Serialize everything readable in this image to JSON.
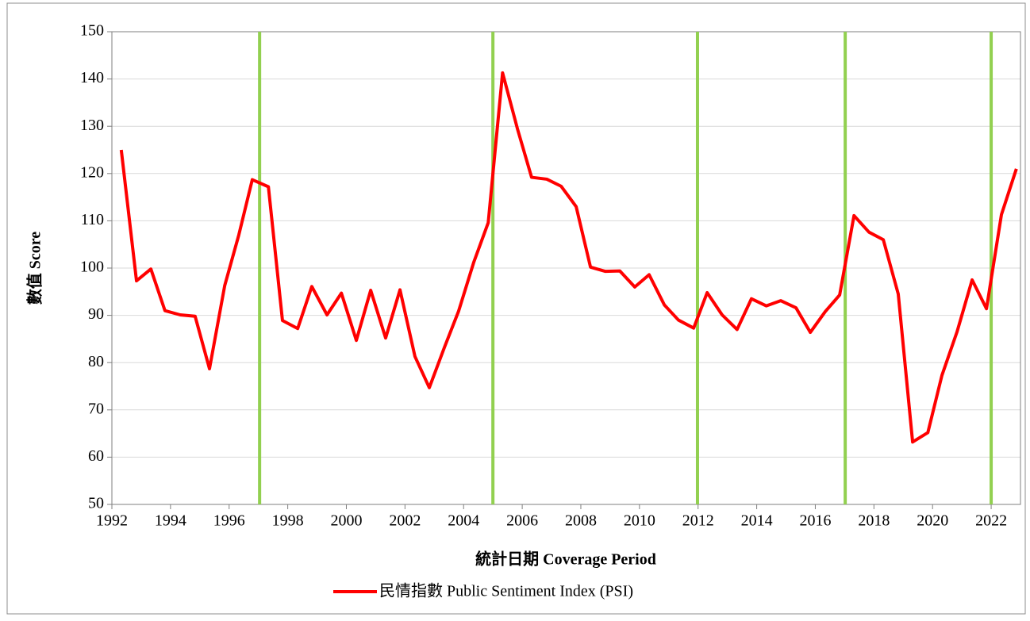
{
  "chart_data": {
    "type": "line",
    "xlabel": "統計日期 Coverage Period",
    "ylabel": "數值 Score",
    "x": [
      1992.32,
      1992.84,
      1993.33,
      1993.81,
      1994.33,
      1994.84,
      1995.33,
      1995.85,
      1996.33,
      1996.79,
      1997.34,
      1997.82,
      1998.34,
      1998.82,
      1999.34,
      1999.83,
      2000.34,
      2000.83,
      2001.34,
      2001.83,
      2002.34,
      2002.83,
      2003.35,
      2003.83,
      2004.35,
      2004.84,
      2005.33,
      2005.84,
      2006.32,
      2006.84,
      2007.33,
      2007.84,
      2008.33,
      2008.84,
      2009.33,
      2009.84,
      2010.33,
      2010.85,
      2011.33,
      2011.85,
      2012.31,
      2012.82,
      2013.33,
      2013.82,
      2014.33,
      2014.82,
      2015.34,
      2015.83,
      2016.34,
      2016.83,
      2017.32,
      2017.83,
      2018.32,
      2018.83,
      2019.32,
      2019.84,
      2020.32,
      2020.84,
      2021.35,
      2021.84,
      2022.35,
      2022.86
    ],
    "series": [
      {
        "name": "民情指數 Public Sentiment Index (PSI)",
        "color": "#ff0000",
        "values": [
          125,
          97.3,
          99.8,
          91,
          90.1,
          89.8,
          78.7,
          96.3,
          107,
          118.7,
          117.2,
          88.9,
          87.2,
          96.1,
          90.1,
          94.7,
          84.7,
          95.3,
          85.2,
          95.4,
          81.3,
          74.7,
          83.3,
          90.9,
          101.3,
          109.6,
          141.3,
          129.4,
          119.2,
          118.8,
          117.3,
          113,
          100.2,
          99.3,
          99.4,
          96,
          98.6,
          92.2,
          89,
          87.3,
          94.8,
          90.1,
          87,
          93.5,
          92,
          93.1,
          91.6,
          86.4,
          90.8,
          94.3,
          111.1,
          107.6,
          106,
          94.5,
          63.2,
          65.2,
          77.3,
          86.6,
          97.5,
          91.4,
          111.3,
          121
        ]
      }
    ],
    "vlines": [
      1997.04,
      2005,
      2011.98,
      2017.02,
      2022
    ],
    "vline_color": "#92d050",
    "xlim": [
      1992,
      2023
    ],
    "xticks": [
      1992,
      1994,
      1996,
      1998,
      2000,
      2002,
      2004,
      2006,
      2008,
      2010,
      2012,
      2014,
      2016,
      2018,
      2020,
      2022
    ],
    "ylim": [
      50,
      150
    ],
    "yticks": [
      50,
      60,
      70,
      80,
      90,
      100,
      110,
      120,
      130,
      140,
      150
    ],
    "grid": true
  }
}
